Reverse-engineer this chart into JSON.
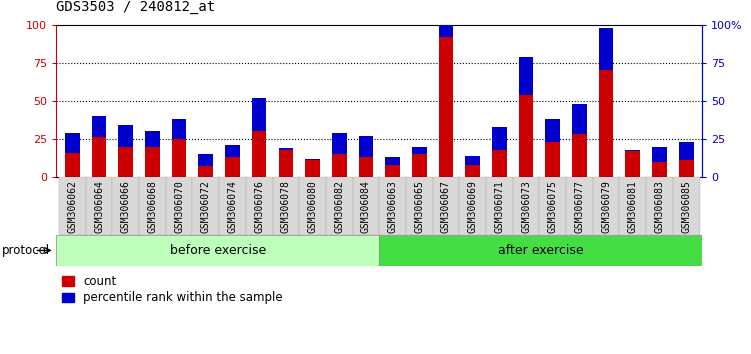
{
  "title": "GDS3503 / 240812_at",
  "categories": [
    "GSM306062",
    "GSM306064",
    "GSM306066",
    "GSM306068",
    "GSM306070",
    "GSM306072",
    "GSM306074",
    "GSM306076",
    "GSM306078",
    "GSM306080",
    "GSM306082",
    "GSM306084",
    "GSM306063",
    "GSM306065",
    "GSM306067",
    "GSM306069",
    "GSM306071",
    "GSM306073",
    "GSM306075",
    "GSM306077",
    "GSM306079",
    "GSM306081",
    "GSM306083",
    "GSM306085"
  ],
  "count_values": [
    16,
    26,
    20,
    20,
    25,
    7,
    13,
    30,
    18,
    11,
    15,
    13,
    8,
    15,
    92,
    8,
    18,
    54,
    23,
    28,
    70,
    17,
    10,
    11
  ],
  "percentile_values": [
    13,
    14,
    14,
    10,
    13,
    8,
    8,
    22,
    1,
    1,
    14,
    14,
    5,
    5,
    32,
    6,
    15,
    25,
    15,
    20,
    28,
    1,
    10,
    12
  ],
  "before_exercise_count": 12,
  "after_exercise_count": 12,
  "bar_width": 0.55,
  "count_color": "#cc0000",
  "percentile_color": "#0000cc",
  "ylim": [
    0,
    100
  ],
  "yticks": [
    0,
    25,
    50,
    75,
    100
  ],
  "grid_color": "black",
  "bg_plot": "#ffffff",
  "bg_xticklabel": "#d8d8d8",
  "bg_label_before": "#bbffbb",
  "bg_label_after": "#44dd44",
  "label_before": "before exercise",
  "label_after": "after exercise",
  "protocol_label": "protocol",
  "legend_count": "count",
  "legend_percentile": "percentile rank within the sample",
  "title_fontsize": 10,
  "tick_fontsize": 7,
  "label_fontsize": 9,
  "axis_color_left": "#cc0000",
  "axis_color_right": "#0000cc"
}
